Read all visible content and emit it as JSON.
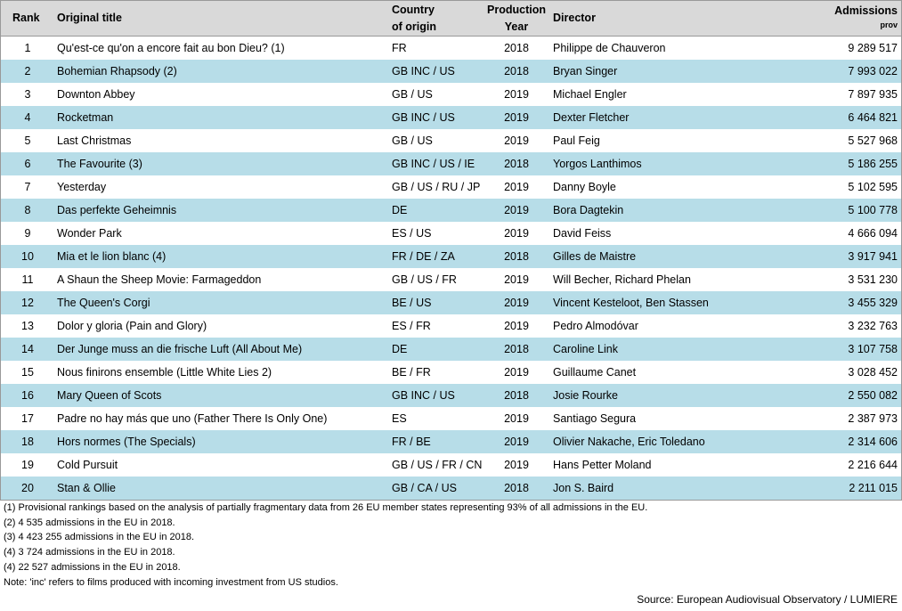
{
  "table": {
    "header": {
      "rank": "Rank",
      "title": "Original title",
      "country": [
        "Country",
        "of origin"
      ],
      "year": [
        "Production",
        "Year"
      ],
      "director": "Director",
      "admissions": [
        "Admissions",
        "prov"
      ]
    },
    "rows": [
      [
        1,
        "Qu'est-ce qu'on a encore fait au bon Dieu? (1)",
        "FR",
        2018,
        "Philippe de Chauveron",
        "9 289 517"
      ],
      [
        2,
        "Bohemian Rhapsody (2)",
        "GB INC / US",
        2018,
        "Bryan Singer",
        "7 993 022"
      ],
      [
        3,
        "Downton Abbey",
        "GB / US",
        2019,
        "Michael Engler",
        "7 897 935"
      ],
      [
        4,
        "Rocketman",
        "GB INC / US",
        2019,
        "Dexter Fletcher",
        "6 464 821"
      ],
      [
        5,
        "Last Christmas",
        "GB / US",
        2019,
        "Paul Feig",
        "5 527 968"
      ],
      [
        6,
        "The Favourite (3)",
        "GB INC / US / IE",
        2018,
        "Yorgos Lanthimos",
        "5 186 255"
      ],
      [
        7,
        "Yesterday",
        "GB / US / RU / JP",
        2019,
        "Danny Boyle",
        "5 102 595"
      ],
      [
        8,
        "Das perfekte Geheimnis",
        "DE",
        2019,
        "Bora Dagtekin",
        "5 100 778"
      ],
      [
        9,
        "Wonder Park",
        "ES / US",
        2019,
        "David Feiss",
        "4 666 094"
      ],
      [
        10,
        "Mia et le lion blanc (4)",
        "FR / DE / ZA",
        2018,
        "Gilles de Maistre",
        "3 917 941"
      ],
      [
        11,
        "A Shaun the Sheep Movie: Farmageddon",
        "GB / US / FR",
        2019,
        "Will Becher, Richard Phelan",
        "3 531 230"
      ],
      [
        12,
        "The Queen's Corgi",
        "BE / US",
        2019,
        "Vincent Kesteloot, Ben Stassen",
        "3 455 329"
      ],
      [
        13,
        "Dolor y gloria (Pain and Glory)",
        "ES / FR",
        2019,
        "Pedro Almodóvar",
        "3 232 763"
      ],
      [
        14,
        "Der Junge muss an die frische Luft (All About Me)",
        "DE",
        2018,
        "Caroline Link",
        "3 107 758"
      ],
      [
        15,
        "Nous finirons ensemble (Little White Lies 2)",
        "BE / FR",
        2019,
        "Guillaume Canet",
        "3 028 452"
      ],
      [
        16,
        "Mary Queen of Scots",
        "GB INC / US",
        2018,
        "Josie Rourke",
        "2 550 082"
      ],
      [
        17,
        "Padre no hay más que uno (Father There Is Only One)",
        "ES",
        2019,
        "Santiago Segura",
        "2 387 973"
      ],
      [
        18,
        "Hors normes (The Specials)",
        "FR / BE",
        2019,
        "Olivier Nakache, Eric Toledano",
        "2 314 606"
      ],
      [
        19,
        "Cold Pursuit",
        "GB / US / FR / CN",
        2019,
        "Hans Petter Moland",
        "2 216 644"
      ],
      [
        20,
        "Stan & Ollie",
        "GB / CA / US",
        2018,
        "Jon S. Baird",
        "2 211 015"
      ]
    ]
  },
  "footnotes": [
    "(1) Provisional rankings based on the analysis of partially fragmentary data from 26 EU member states representing 93% of all admissions in the EU.",
    "(2) 4 535 admissions in the EU in 2018.",
    "(3) 4 423 255 admissions in the EU in 2018.",
    "(4) 3 724 admissions in the EU in 2018.",
    "(4) 22 527 admissions in the EU in 2018.",
    "Note: 'inc' refers to films produced with incoming investment from US studios."
  ],
  "source": "Source: European Audiovisual Observatory / LUMIERE"
}
